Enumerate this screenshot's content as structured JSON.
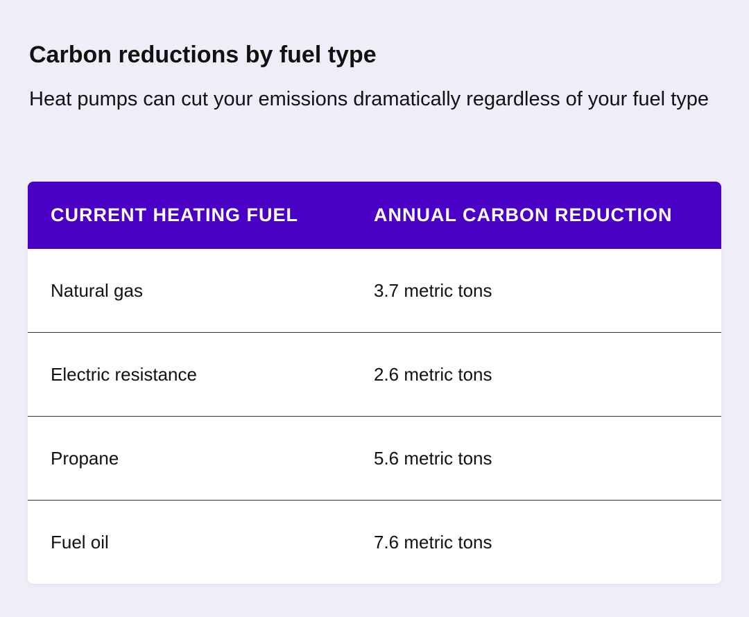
{
  "title": "Carbon reductions by fuel type",
  "subtitle": "Heat pumps can cut your emissions dramatically regardless of your fuel type",
  "colors": {
    "header_bg": "#4a00c4",
    "page_bg": "#efedf7"
  },
  "table": {
    "headers": [
      "CURRENT HEATING FUEL",
      "ANNUAL CARBON REDUCTION"
    ],
    "rows": [
      [
        "Natural gas",
        "3.7 metric tons"
      ],
      [
        "Electric resistance",
        "2.6 metric tons"
      ],
      [
        "Propane",
        "5.6 metric tons"
      ],
      [
        "Fuel oil",
        "7.6 metric tons"
      ]
    ]
  }
}
